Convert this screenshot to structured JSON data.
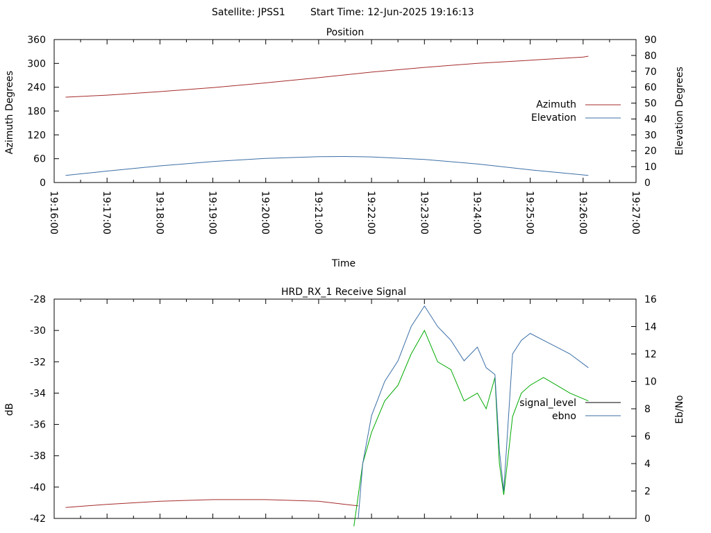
{
  "header": {
    "satellite": "Satellite: JPSS1",
    "start_time": "Start Time: 12-Jun-2025 19:16:13"
  },
  "chart_data": [
    {
      "type": "line",
      "title": "Position",
      "xlabel": "Time",
      "ylabel": "Azimuth Degrees",
      "y2label": "Elevation Degrees",
      "ylim": [
        0,
        360
      ],
      "y2lim": [
        0,
        90
      ],
      "y_ticks": [
        0,
        60,
        120,
        180,
        240,
        300,
        360
      ],
      "y2_ticks": [
        0,
        10,
        20,
        30,
        40,
        50,
        60,
        70,
        80,
        90
      ],
      "x_ticks": [
        "19:16:00",
        "19:17:00",
        "19:18:00",
        "19:19:00",
        "19:20:00",
        "19:21:00",
        "19:22:00",
        "19:23:00",
        "19:24:00",
        "19:25:00",
        "19:26:00",
        "19:27:00"
      ],
      "xlim": [
        "19:16:00",
        "19:27:00"
      ],
      "grid": false,
      "legend_position": "right",
      "series": [
        {
          "name": "Azimuth",
          "axis": "left",
          "color": "#a52a2a",
          "x": [
            "19:16:13",
            "19:17:00",
            "19:18:00",
            "19:19:00",
            "19:20:00",
            "19:21:00",
            "19:22:00",
            "19:23:00",
            "19:24:00",
            "19:25:00",
            "19:26:00",
            "19:26:06"
          ],
          "values": [
            215,
            220,
            229,
            239,
            251,
            264,
            278,
            290,
            300,
            308,
            316,
            318
          ]
        },
        {
          "name": "Elevation",
          "axis": "right",
          "color": "#3a6ea5",
          "x": [
            "19:16:13",
            "19:17:00",
            "19:18:00",
            "19:19:00",
            "19:20:00",
            "19:21:00",
            "19:21:30",
            "19:22:00",
            "19:23:00",
            "19:24:00",
            "19:25:00",
            "19:26:06"
          ],
          "values": [
            4.5,
            7.2,
            10.5,
            13.2,
            15.2,
            16.3,
            16.4,
            16.1,
            14.5,
            11.7,
            8.0,
            4.5
          ]
        }
      ]
    },
    {
      "type": "line",
      "title": "HRD_RX_1 Receive Signal",
      "ylabel": "dB",
      "y2label": "Eb/No",
      "ylim": [
        -42,
        -28
      ],
      "y2lim": [
        0,
        16
      ],
      "y_ticks": [
        -42,
        -40,
        -38,
        -36,
        -34,
        -32,
        -30,
        -28
      ],
      "y2_ticks": [
        0,
        2,
        4,
        6,
        8,
        10,
        12,
        14,
        16
      ],
      "xlim": [
        "19:16:00",
        "19:27:00"
      ],
      "grid": false,
      "legend_position": "right",
      "series": [
        {
          "name": "signal_level",
          "axis": "left",
          "color": "#a52a2a",
          "legend_color": "#000000",
          "x": [
            "19:16:13",
            "19:17:00",
            "19:18:00",
            "19:19:00",
            "19:20:00",
            "19:21:00",
            "19:21:30",
            "19:21:45"
          ],
          "values": [
            -41.3,
            -41.1,
            -40.9,
            -40.8,
            -40.8,
            -40.9,
            -41.1,
            -41.2
          ]
        },
        {
          "name": "",
          "axis": "left",
          "color": "#00aa00",
          "x": [
            "19:21:40",
            "19:21:50",
            "19:22:00",
            "19:22:15",
            "19:22:30",
            "19:22:45",
            "19:23:00",
            "19:23:15",
            "19:23:30",
            "19:23:45",
            "19:24:00",
            "19:24:10",
            "19:24:20",
            "19:24:25",
            "19:24:30",
            "19:24:40",
            "19:24:50",
            "19:25:00",
            "19:25:15",
            "19:25:30",
            "19:25:45",
            "19:26:06"
          ],
          "values": [
            -42.5,
            -38.5,
            -36.5,
            -34.5,
            -33.5,
            -31.5,
            -30.0,
            -32.0,
            -32.5,
            -34.5,
            -34.0,
            -35.0,
            -33.0,
            -38.5,
            -40.5,
            -35.5,
            -34.0,
            -33.5,
            -33.0,
            -33.5,
            -34.0,
            -34.5
          ]
        },
        {
          "name": "ebno",
          "axis": "right",
          "color": "#3a6ea5",
          "x": [
            "19:21:45",
            "19:21:50",
            "19:22:00",
            "19:22:15",
            "19:22:30",
            "19:22:45",
            "19:23:00",
            "19:23:15",
            "19:23:30",
            "19:23:45",
            "19:24:00",
            "19:24:10",
            "19:24:20",
            "19:24:25",
            "19:24:30",
            "19:24:40",
            "19:24:50",
            "19:25:00",
            "19:25:15",
            "19:25:30",
            "19:25:45",
            "19:26:06"
          ],
          "values": [
            0,
            4.0,
            7.5,
            10.0,
            11.5,
            14.0,
            15.5,
            14.0,
            13.0,
            11.5,
            12.5,
            11.0,
            10.5,
            5.0,
            2.0,
            12.0,
            13.0,
            13.5,
            13.0,
            12.5,
            12.0,
            11.0
          ]
        }
      ]
    }
  ]
}
